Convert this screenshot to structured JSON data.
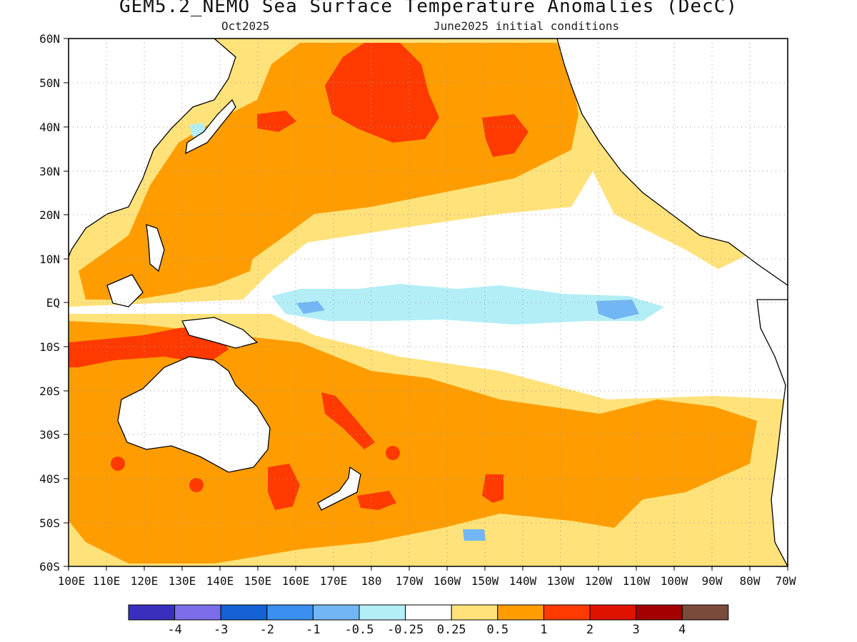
{
  "figure": {
    "title": "GEM5.2_NEMO Sea Surface Temperature Anomalies (DecC)",
    "valid_month": "Oct2025",
    "initial_conditions": "June2025 initial conditions"
  },
  "latitude_ticks": [
    "60N",
    "50N",
    "40N",
    "30N",
    "20N",
    "10N",
    "EQ",
    "10S",
    "20S",
    "30S",
    "40S",
    "50S",
    "60S"
  ],
  "longitude_ticks": [
    "100E",
    "110E",
    "120E",
    "130E",
    "140E",
    "150E",
    "160E",
    "170E",
    "180",
    "170W",
    "160W",
    "150W",
    "140W",
    "130W",
    "120W",
    "110W",
    "100W",
    "90W",
    "80W",
    "70W"
  ],
  "colorbar": {
    "colors": [
      "#3a2fbd",
      "#7b6ee8",
      "#1561d6",
      "#3a8ff0",
      "#73b6f5",
      "#b3eef7",
      "#ffffff",
      "#ffe27a",
      "#ff9d00",
      "#ff3a00",
      "#df1200",
      "#a40000",
      "#7a4a3a"
    ],
    "labels": [
      "-4",
      "-3",
      "-2",
      "-1",
      "-0.5",
      "-0.25",
      "0.25",
      "0.5",
      "1",
      "2",
      "3",
      "4"
    ]
  },
  "colors": {
    "weak_positive": "#ffe27a",
    "moderate_positive": "#ff9d00",
    "strong_positive": "#ff3a00",
    "very_strong_positive": "#df1200",
    "weak_negative": "#b3eef7",
    "moderate_negative": "#73b6f5",
    "land": "#ffffff"
  }
}
